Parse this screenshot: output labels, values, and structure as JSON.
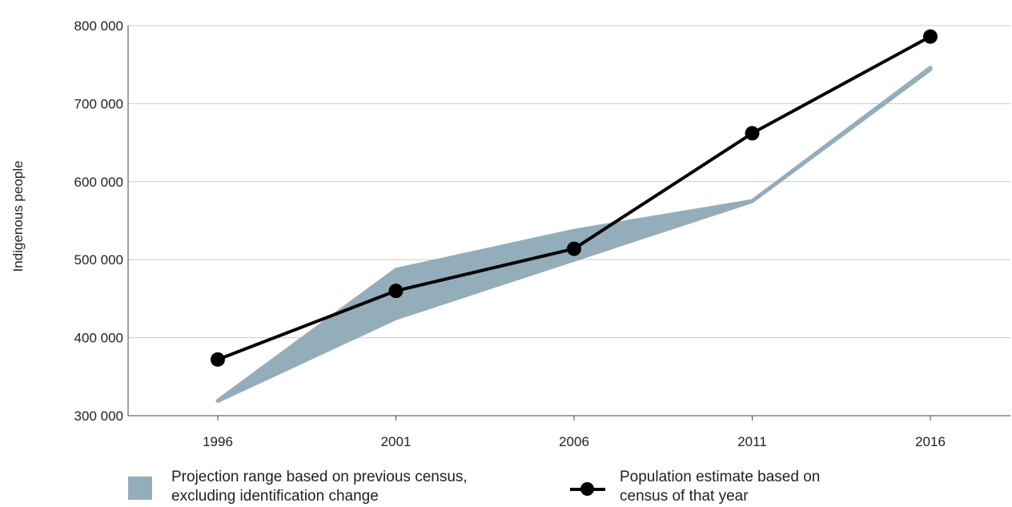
{
  "chart_data": {
    "type": "line",
    "ylabel": "Indigenous people",
    "ylim": [
      300000,
      800000
    ],
    "y_ticks": [
      {
        "value": 300000,
        "label": "300 000"
      },
      {
        "value": 400000,
        "label": "400 000"
      },
      {
        "value": 500000,
        "label": "500 000"
      },
      {
        "value": 600000,
        "label": "600 000"
      },
      {
        "value": 700000,
        "label": "700 000"
      },
      {
        "value": 800000,
        "label": "800 000"
      }
    ],
    "categories": [
      "1996",
      "2001",
      "2006",
      "2011",
      "2016"
    ],
    "grid": true,
    "legend_position": "bottom",
    "series": [
      {
        "name": "Projection range based on previous census, excluding identification change",
        "type": "area-range",
        "color": "#94adbb",
        "lower": [
          319000,
          425000,
          500000,
          575000,
          744000
        ],
        "upper": [
          319000,
          487000,
          537000,
          575000,
          746000
        ]
      },
      {
        "name": "Population estimate based on census of that year",
        "type": "line",
        "color": "#000000",
        "values": [
          372000,
          460000,
          514000,
          662000,
          786000
        ]
      }
    ]
  },
  "legend": {
    "band_line1": "Projection range based on previous census,",
    "band_line2": "excluding identification change",
    "line_line1": "Population estimate based on",
    "line_line2": "census of that year"
  }
}
